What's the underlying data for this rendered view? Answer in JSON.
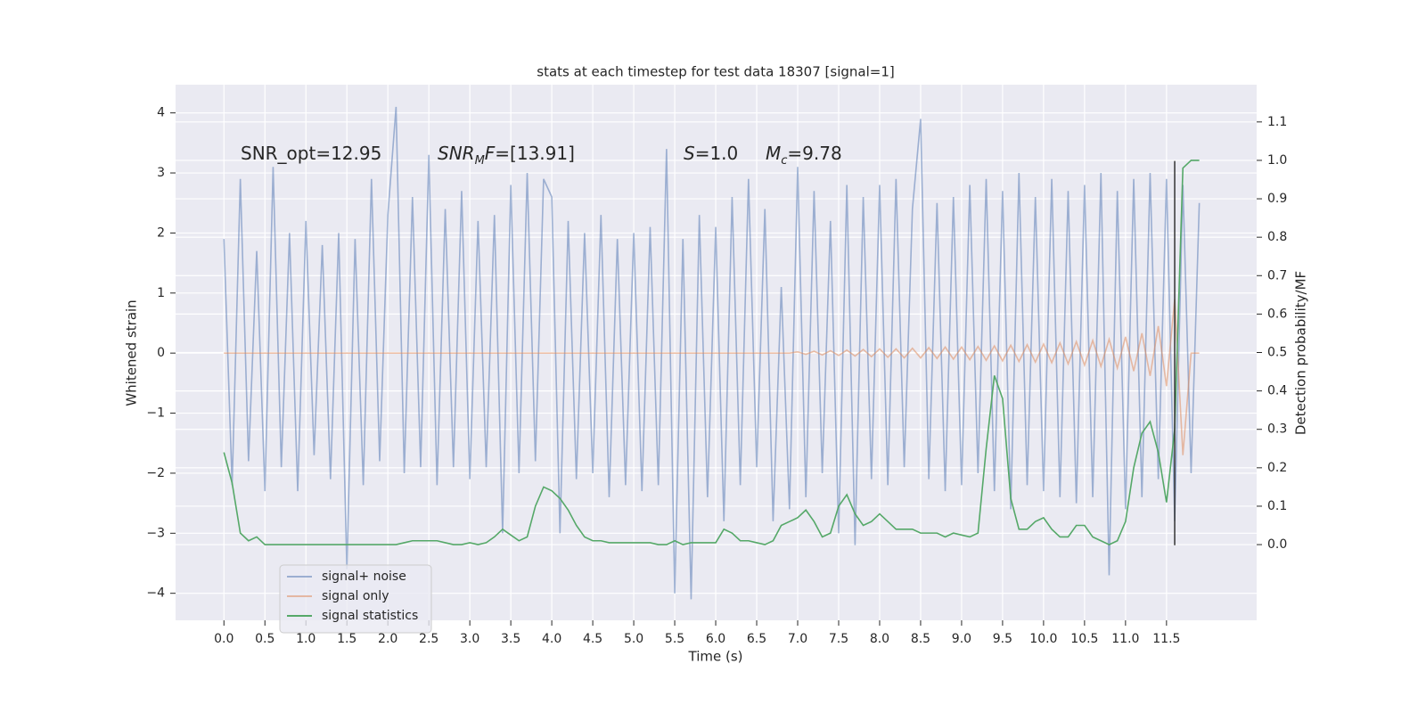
{
  "chart_data": {
    "type": "line",
    "title": "stats at each timestep for test data 18307 [signal=1]",
    "xlabel": "Time (s)",
    "ylabel": "Whitened strain",
    "y2label": "Detection probability/MF",
    "x": [
      0.0,
      0.1,
      0.2,
      0.3,
      0.4,
      0.5,
      0.6,
      0.7,
      0.8,
      0.9,
      1.0,
      1.1,
      1.2,
      1.3,
      1.4,
      1.5,
      1.6,
      1.7,
      1.8,
      1.9,
      2.0,
      2.1,
      2.2,
      2.3,
      2.4,
      2.5,
      2.6,
      2.7,
      2.8,
      2.9,
      3.0,
      3.1,
      3.2,
      3.3,
      3.4,
      3.5,
      3.6,
      3.7,
      3.8,
      3.9,
      4.0,
      4.1,
      4.2,
      4.3,
      4.4,
      4.5,
      4.6,
      4.7,
      4.8,
      4.9,
      5.0,
      5.1,
      5.2,
      5.3,
      5.4,
      5.5,
      5.6,
      5.7,
      5.8,
      5.9,
      6.0,
      6.1,
      6.2,
      6.3,
      6.4,
      6.5,
      6.6,
      6.7,
      6.8,
      6.9,
      7.0,
      7.1,
      7.2,
      7.3,
      7.4,
      7.5,
      7.6,
      7.7,
      7.8,
      7.9,
      8.0,
      8.1,
      8.2,
      8.3,
      8.4,
      8.5,
      8.6,
      8.7,
      8.8,
      8.9,
      9.0,
      9.1,
      9.2,
      9.3,
      9.4,
      9.5,
      9.6,
      9.7,
      9.8,
      9.9,
      10.0,
      10.1,
      10.2,
      10.3,
      10.4,
      10.5,
      10.6,
      10.7,
      10.8,
      10.9,
      11.0,
      11.1,
      11.2,
      11.3,
      11.4,
      11.5,
      11.6,
      11.7,
      11.8,
      11.9
    ],
    "series": [
      {
        "name": "signal+ noise",
        "color": "#4c72b0",
        "alpha": 0.5,
        "values": [
          1.9,
          -2.2,
          2.9,
          -1.8,
          1.7,
          -2.3,
          3.1,
          -1.9,
          2.0,
          -2.3,
          2.2,
          -1.7,
          1.8,
          -2.1,
          2.0,
          -3.6,
          1.9,
          -2.2,
          2.9,
          -1.8,
          2.3,
          4.1,
          -2.0,
          2.6,
          -1.9,
          3.3,
          -2.2,
          2.4,
          -1.9,
          2.7,
          -2.1,
          2.2,
          -1.9,
          2.3,
          -3.0,
          2.8,
          -2.0,
          3.0,
          -1.8,
          2.9,
          2.6,
          -3.0,
          2.2,
          -2.1,
          2.0,
          -2.0,
          2.3,
          -2.4,
          1.9,
          -2.2,
          2.0,
          -2.3,
          2.1,
          -2.2,
          3.4,
          -4.0,
          1.9,
          -4.1,
          2.3,
          -2.4,
          2.1,
          -2.8,
          2.6,
          -2.2,
          2.9,
          -1.9,
          2.4,
          -2.8,
          1.1,
          -2.6,
          3.1,
          -2.4,
          2.7,
          -2.0,
          2.2,
          -3.0,
          2.8,
          -3.2,
          2.6,
          -2.1,
          2.8,
          -2.2,
          2.9,
          -1.9,
          2.4,
          3.9,
          -2.1,
          2.5,
          -2.3,
          2.6,
          -2.2,
          2.8,
          -2.0,
          2.9,
          -2.3,
          2.7,
          -2.6,
          3.0,
          -2.2,
          2.6,
          -2.3,
          2.9,
          -2.4,
          2.7,
          -2.5,
          2.8,
          -2.4,
          3.0,
          -3.7,
          2.7,
          -2.6,
          2.9,
          -2.4,
          3.0,
          -2.1,
          2.9,
          -2.8,
          2.8,
          -2.0,
          2.5
        ]
      },
      {
        "name": "signal only",
        "color": "#dd8452",
        "alpha": 0.5,
        "values": [
          0,
          0,
          0,
          0,
          0,
          0,
          0,
          0,
          0,
          0,
          0,
          0,
          0,
          0,
          0,
          0,
          0,
          0,
          0,
          0,
          0,
          0,
          0,
          0,
          0,
          0,
          0,
          0,
          0,
          0,
          0,
          0,
          0,
          0,
          0,
          0,
          0,
          0,
          0,
          0,
          0,
          0,
          0,
          0,
          0,
          0,
          0,
          0,
          0,
          0,
          0,
          0,
          0,
          0,
          0,
          0,
          0,
          0,
          0,
          0,
          0,
          0,
          0,
          0,
          0,
          0,
          0,
          0,
          0,
          0,
          0.02,
          -0.02,
          0.03,
          -0.03,
          0.04,
          -0.04,
          0.05,
          -0.05,
          0.06,
          -0.06,
          0.07,
          -0.07,
          0.07,
          -0.08,
          0.08,
          -0.08,
          0.09,
          -0.09,
          0.1,
          -0.1,
          0.1,
          -0.11,
          0.11,
          -0.12,
          0.12,
          -0.13,
          0.13,
          -0.14,
          0.14,
          -0.15,
          0.15,
          -0.16,
          0.17,
          -0.18,
          0.19,
          -0.2,
          0.21,
          -0.22,
          0.23,
          -0.25,
          0.27,
          -0.3,
          0.33,
          -0.38,
          0.45,
          -0.55,
          0.9,
          -1.7,
          0,
          0
        ]
      },
      {
        "name": "signal statistics",
        "color": "#55a868",
        "alpha": 1,
        "axis": "y2",
        "values": [
          0.24,
          0.16,
          0.03,
          0.01,
          0.02,
          0.0,
          0.0,
          0.0,
          0.0,
          0.0,
          0.0,
          0.0,
          0.0,
          0.0,
          0.0,
          0.0,
          0.0,
          0.0,
          0.0,
          0.0,
          0.0,
          0.0,
          0.005,
          0.01,
          0.01,
          0.01,
          0.01,
          0.005,
          0.0,
          0.0,
          0.005,
          0.0,
          0.005,
          0.02,
          0.04,
          0.025,
          0.01,
          0.02,
          0.1,
          0.15,
          0.14,
          0.12,
          0.09,
          0.05,
          0.02,
          0.01,
          0.01,
          0.005,
          0.005,
          0.005,
          0.005,
          0.005,
          0.005,
          0.0,
          0.0,
          0.01,
          0.0,
          0.005,
          0.005,
          0.005,
          0.005,
          0.04,
          0.03,
          0.01,
          0.01,
          0.005,
          0.0,
          0.01,
          0.05,
          0.06,
          0.07,
          0.09,
          0.06,
          0.02,
          0.03,
          0.1,
          0.13,
          0.08,
          0.05,
          0.06,
          0.08,
          0.06,
          0.04,
          0.04,
          0.04,
          0.03,
          0.03,
          0.03,
          0.02,
          0.03,
          0.025,
          0.02,
          0.03,
          0.25,
          0.44,
          0.38,
          0.12,
          0.04,
          0.04,
          0.06,
          0.07,
          0.04,
          0.02,
          0.02,
          0.05,
          0.05,
          0.02,
          0.01,
          0.0,
          0.01,
          0.06,
          0.2,
          0.29,
          0.32,
          0.24,
          0.11,
          0.3,
          0.98,
          1.0,
          1.0
        ]
      }
    ],
    "vline": {
      "x": 11.6,
      "y": [
        -3.2,
        3.2
      ],
      "color": "#333333"
    },
    "annotations": [
      [
        {
          "text": "SNR_opt=12.95"
        }
      ],
      [
        {
          "text": "SNR",
          "italic": true
        },
        {
          "text": "M",
          "italic": true,
          "sub": true
        },
        {
          "text": "F",
          "italic": true
        },
        {
          "text": "=[13.91]"
        }
      ],
      [
        {
          "text": "S",
          "italic": true
        },
        {
          "text": "=1.0"
        }
      ],
      [
        {
          "text": "M",
          "italic": true
        },
        {
          "text": "c",
          "italic": true,
          "sub": true
        },
        {
          "text": "=9.78"
        }
      ]
    ],
    "xlim": [
      -0.59,
      12.6
    ],
    "ylim": [
      -4.45,
      4.47
    ],
    "y2lim": [
      -0.197,
      1.197
    ],
    "xticks": [
      {
        "value": 0,
        "label": "0.0"
      },
      0.5,
      {
        "value": 1,
        "label": "1.0"
      },
      1.5,
      {
        "value": 2,
        "label": "2.0"
      },
      2.5,
      {
        "value": 3,
        "label": "3.0"
      },
      3.5,
      {
        "value": 4,
        "label": "4.0"
      },
      4.5,
      {
        "value": 5,
        "label": "5.0"
      },
      5.5,
      {
        "value": 6,
        "label": "6.0"
      },
      6.5,
      {
        "value": 7,
        "label": "7.0"
      },
      7.5,
      {
        "value": 8,
        "label": "8.0"
      },
      8.5,
      {
        "value": 9,
        "label": "9.0"
      },
      9.5,
      {
        "value": 10,
        "label": "10.0"
      },
      10.5,
      {
        "value": 11,
        "label": "11.0"
      },
      11.5
    ],
    "yticks": [
      {
        "value": -4,
        "label": "−4"
      },
      {
        "value": -3,
        "label": "−3"
      },
      {
        "value": -2,
        "label": "−2"
      },
      {
        "value": -1,
        "label": "−1"
      },
      0,
      1,
      2,
      3,
      4
    ],
    "y2ticks": [
      {
        "value": 0,
        "label": "0.0"
      },
      0.1,
      0.2,
      0.3,
      0.4,
      0.5,
      0.6,
      0.7,
      0.8,
      0.9,
      {
        "value": 1,
        "label": "1.0"
      },
      1.1
    ],
    "grid": true,
    "legend": "lower left"
  }
}
